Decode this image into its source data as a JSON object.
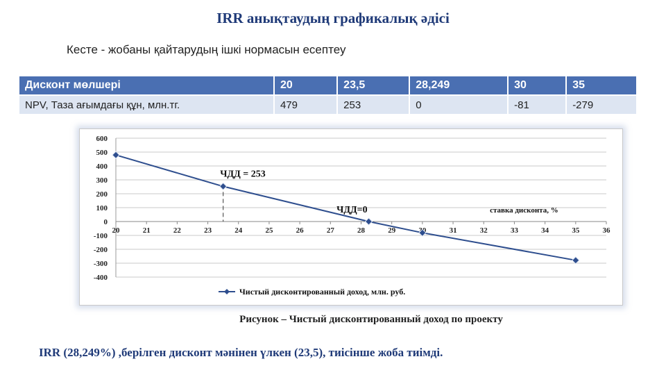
{
  "title": "IRR анықтаудың графикалық әдісі",
  "subtitle": "Кесте - жобаны қайтарудың ішкі нормасын есептеу",
  "table": {
    "header": [
      "Дисконт мөлшері",
      "20",
      "23,5",
      "28,249",
      "30",
      "35"
    ],
    "row": [
      "NPV, Таза ағымдағы құн, млн.тг.",
      "479",
      "253",
      "0",
      "-81",
      "-279"
    ]
  },
  "chart_data": {
    "type": "line",
    "x": [
      20,
      23.5,
      28.249,
      30,
      35
    ],
    "series": [
      {
        "name": "Чистый дисконтированный доход, млн. руб.",
        "values": [
          479,
          253,
          0,
          -81,
          -279
        ]
      }
    ],
    "xlim": [
      20,
      36
    ],
    "ylim": [
      -400,
      600
    ],
    "x_ticks": [
      "20",
      "21",
      "22",
      "23",
      "24",
      "25",
      "26",
      "27",
      "28",
      "29",
      "30",
      "31",
      "32",
      "33",
      "34",
      "35",
      "36"
    ],
    "y_ticks": [
      "600",
      "500",
      "400",
      "300",
      "200",
      "100",
      "0",
      "-100",
      "-200",
      "-300",
      "-400"
    ],
    "annotations": [
      "ЧДД = 253",
      "ЧДД=0"
    ],
    "axis_title": "ставка дисконта, %",
    "grid": true,
    "legend_position": "bottom",
    "line_color": "#2e4e8e"
  },
  "caption": "Рисунок – Чистый дисконтированный доход по проекту",
  "conclusion": "IRR (28,249%)  ,берілген дисконт мәнінен үлкен (23,5), тиісінше жоба тиімді."
}
